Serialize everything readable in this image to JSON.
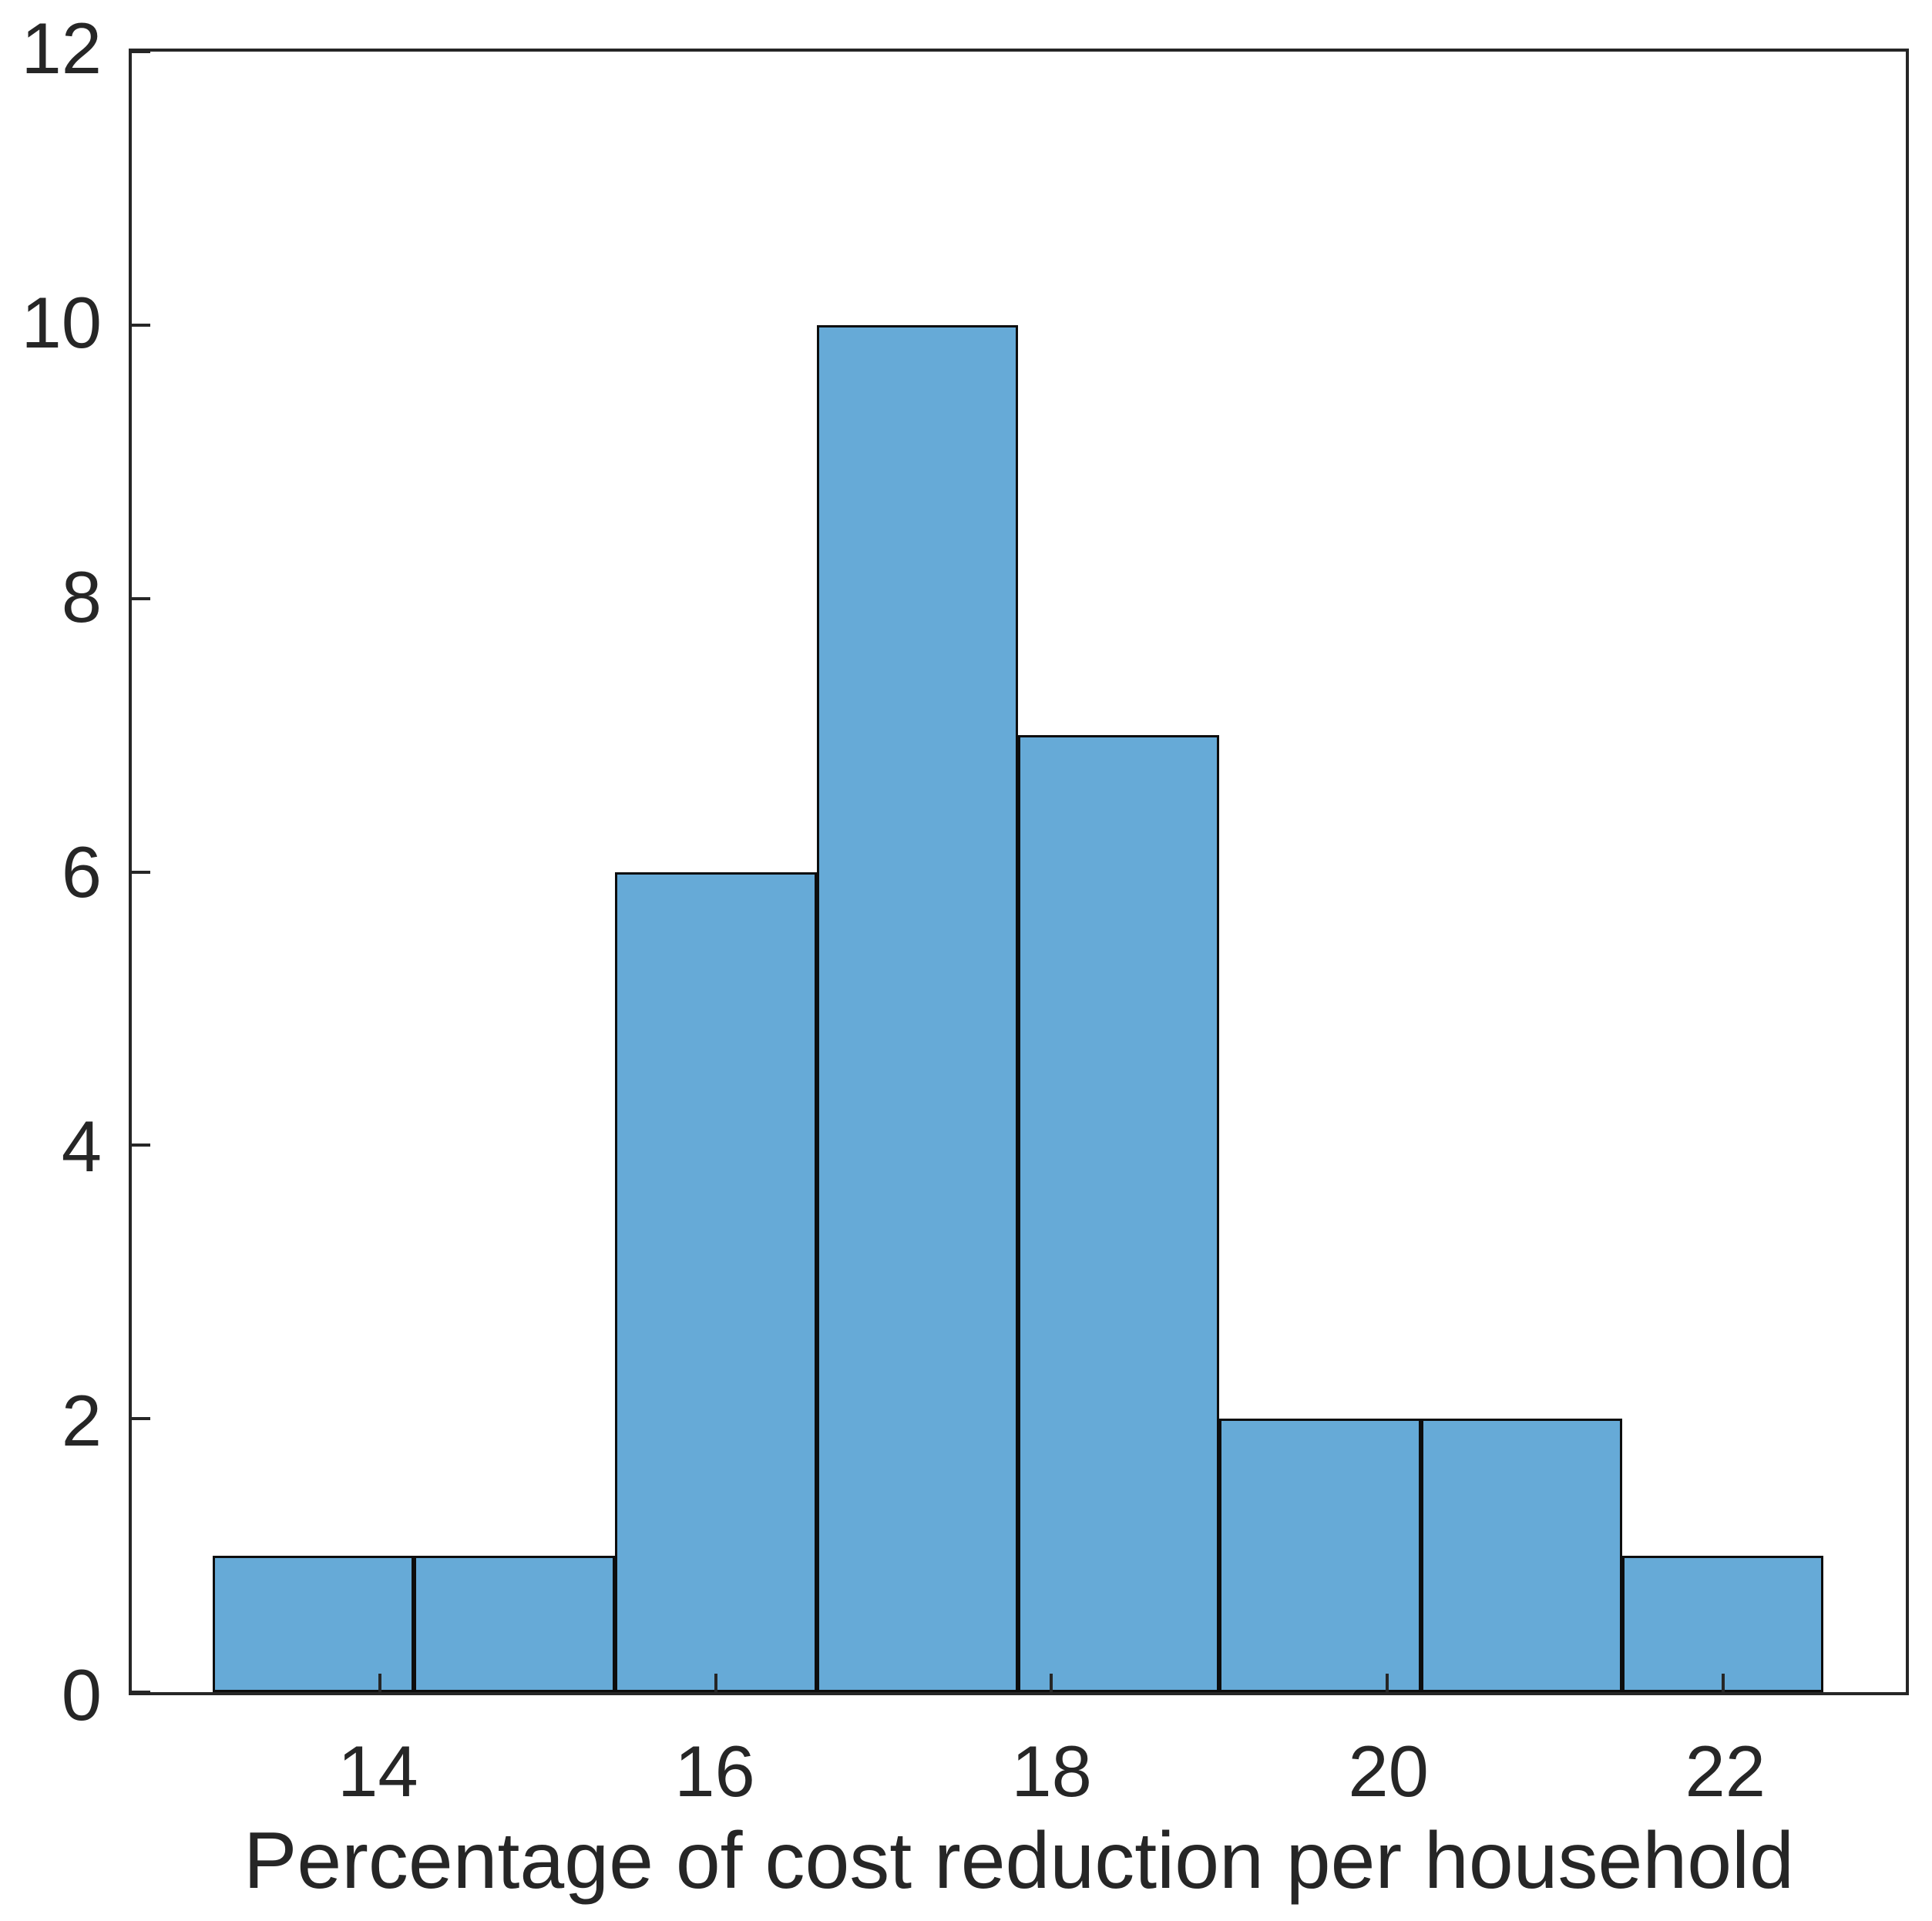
{
  "figure": {
    "background": "#FFFFFF"
  },
  "chart_data": {
    "type": "bar",
    "subtype": "histogram",
    "title": "",
    "xlabel": "Percentage of cost reduction per household",
    "ylabel": "",
    "bin_edges": [
      13.0,
      14.2,
      15.4,
      16.6,
      17.8,
      19.0,
      20.2,
      21.4,
      22.6
    ],
    "counts": [
      1,
      1,
      6,
      10,
      7,
      2,
      2,
      1
    ],
    "x_tick_labels": [
      "14",
      "16",
      "18",
      "20",
      "22"
    ],
    "x_ticks": [
      14,
      16,
      18,
      20,
      22
    ],
    "y_tick_labels": [
      "0",
      "2",
      "4",
      "6",
      "8",
      "10",
      "12"
    ],
    "y_ticks": [
      0,
      2,
      4,
      6,
      8,
      10,
      12
    ],
    "xlim": [
      12.52,
      23.09
    ],
    "ylim": [
      0,
      12
    ],
    "grid": false,
    "legend": false,
    "colors": {
      "bar_fill": "#66AAD7",
      "bar_edge": "#0D0D0D",
      "axis": "#262626",
      "text": "#262626",
      "background": "#FFFFFF"
    }
  }
}
